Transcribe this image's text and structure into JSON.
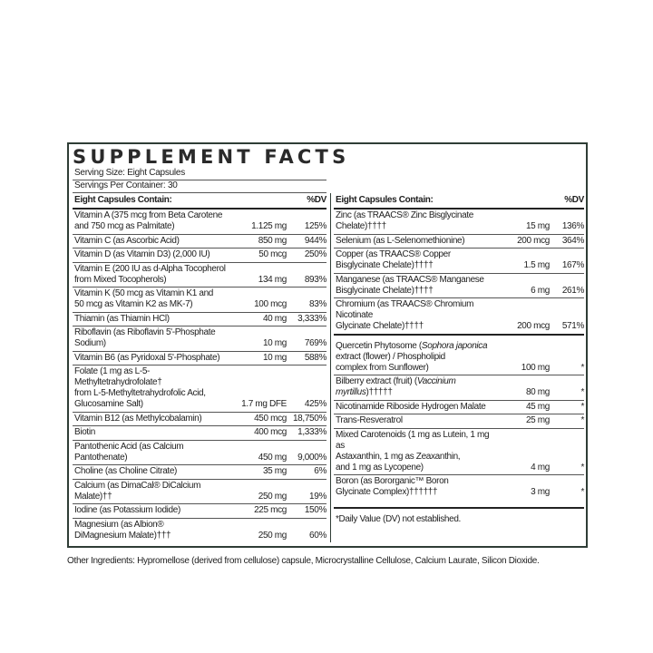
{
  "title": "SUPPLEMENT FACTS",
  "serving_size": "Serving Size: Eight Capsules",
  "servings_per_container": "Servings Per Container: 30",
  "left": {
    "header": {
      "name": "Eight Capsules Contain:",
      "dv": "%DV"
    },
    "rows": [
      {
        "name": "Vitamin A (375 mcg from Beta Carotene\n   and 750 mcg as Palmitate)",
        "amount": "1.125 mg",
        "dv": "125%"
      },
      {
        "name": "Vitamin C (as Ascorbic Acid)",
        "amount": "850 mg",
        "dv": "944%"
      },
      {
        "name": "Vitamin D (as Vitamin D3) (2,000 IU)",
        "amount": "50 mcg",
        "dv": "250%"
      },
      {
        "name": "Vitamin E (200 IU as d-Alpha Tocopherol\n   from Mixed Tocopherols)",
        "amount": "134 mg",
        "dv": "893%"
      },
      {
        "name": "Vitamin K (50 mcg as Vitamin K1 and\n   50 mcg as Vitamin K2 as MK-7)",
        "amount": "100 mcg",
        "dv": "83%"
      },
      {
        "name": "Thiamin (as Thiamin HCl)",
        "amount": "40 mg",
        "dv": "3,333%"
      },
      {
        "name": "Riboflavin (as Riboflavin 5'-Phosphate Sodium)",
        "amount": "10 mg",
        "dv": "769%"
      },
      {
        "name": "Vitamin B6 (as Pyridoxal 5'-Phosphate)",
        "amount": "10 mg",
        "dv": "588%"
      },
      {
        "name": "Folate (1 mg as L-5-Methyltetrahydrofolate†\n   from L-5-Methyltetrahydrofolic Acid,\n   Glucosamine Salt)",
        "amount": "1.7 mg DFE",
        "dv": "425%"
      },
      {
        "name": "Vitamin B12 (as Methylcobalamin)",
        "amount": "450 mcg",
        "dv": "18,750%"
      },
      {
        "name": "Biotin",
        "amount": "400 mcg",
        "dv": "1,333%"
      },
      {
        "name": "Pantothenic Acid (as Calcium Pantothenate)",
        "amount": "450 mg",
        "dv": "9,000%"
      },
      {
        "name": "Choline (as Choline Citrate)",
        "amount": "35 mg",
        "dv": "6%"
      },
      {
        "name": "Calcium (as DimaCal® DiCalcium Malate)††",
        "amount": "250 mg",
        "dv": "19%"
      },
      {
        "name": "Iodine (as Potassium Iodide)",
        "amount": "225 mcg",
        "dv": "150%"
      },
      {
        "name": "Magnesium (as Albion®\n   DiMagnesium Malate)†††",
        "amount": "250 mg",
        "dv": "60%"
      }
    ]
  },
  "right": {
    "header": {
      "name": "Eight Capsules Contain:",
      "dv": "%DV"
    },
    "rows": [
      {
        "name": "Zinc (as TRAACS® Zinc Bisglycinate Chelate)††††",
        "amount": "15 mg",
        "dv": "136%"
      },
      {
        "name": "Selenium (as L-Selenomethionine)",
        "amount": "200 mcg",
        "dv": "364%"
      },
      {
        "name": "Copper (as TRAACS® Copper\n   Bisglycinate Chelate)††††",
        "amount": "1.5 mg",
        "dv": "167%"
      },
      {
        "name": "Manganese (as TRAACS® Manganese\n   Bisglycinate Chelate)††††",
        "amount": "6 mg",
        "dv": "261%"
      },
      {
        "name": "Chromium (as TRAACS® Chromium Nicotinate\n   Glycinate Chelate)††††",
        "amount": "200 mcg",
        "dv": "571%"
      }
    ],
    "rows2": [
      {
        "name_pre": "Quercetin Phytosome (",
        "name_italic": "Sophora japonica",
        "name_post": "\n   extract (flower) / Phospholipid\n   complex from Sunflower)",
        "amount": "100 mg",
        "dv": "*"
      },
      {
        "name_pre": "Bilberry extract (fruit) (",
        "name_italic": "Vaccinium myrtillus",
        "name_post": ")†††††",
        "amount": "80 mg",
        "dv": "*"
      },
      {
        "name_pre": "Nicotinamide Riboside Hydrogen Malate",
        "name_italic": "",
        "name_post": "",
        "amount": "45 mg",
        "dv": "*"
      },
      {
        "name_pre": "Trans-Resveratrol",
        "name_italic": "",
        "name_post": "",
        "amount": "25 mg",
        "dv": "*"
      },
      {
        "name_pre": "Mixed Carotenoids (1 mg as Lutein, 1 mg as\n   Astaxanthin, 1 mg as Zeaxanthin,\n   and 1 mg as Lycopene)",
        "name_italic": "",
        "name_post": "",
        "amount": "4 mg",
        "dv": "*"
      },
      {
        "name_pre": "Boron (as Bororganic™ Boron\n   Glycinate Complex)††††††",
        "name_italic": "",
        "name_post": "",
        "amount": "3 mg",
        "dv": "*"
      }
    ],
    "footnote": "*Daily Value (DV) not established."
  },
  "other_ingredients": "Other Ingredients: Hypromellose (derived from cellulose) capsule, Microcrystalline Cellulose, Calcium Laurate, Silicon Dioxide.",
  "colors": {
    "border": "#2f3d36",
    "text": "#1e1e1e"
  }
}
